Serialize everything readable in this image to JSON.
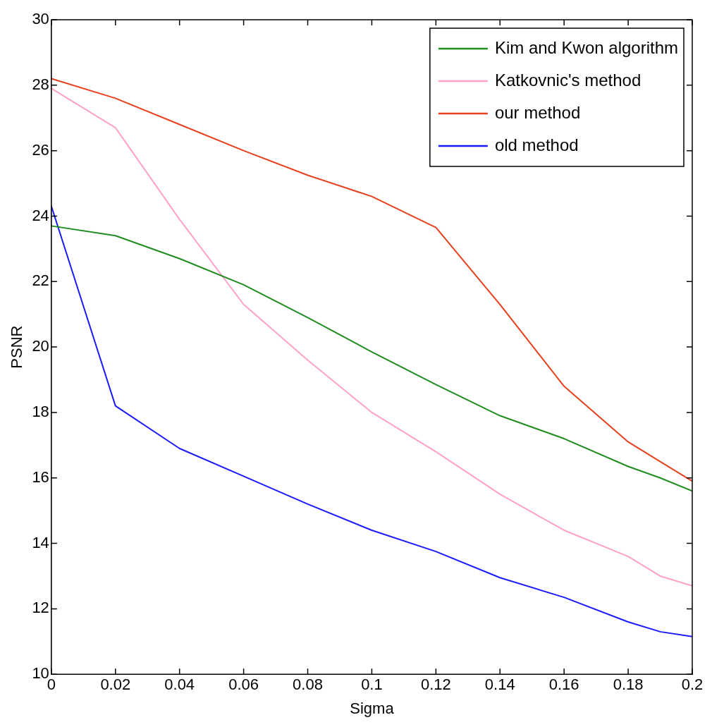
{
  "chart_data": {
    "type": "line",
    "xlabel": "Sigma",
    "ylabel": "PSNR",
    "x": [
      0,
      0.02,
      0.04,
      0.06,
      0.08,
      0.1,
      0.12,
      0.14,
      0.16,
      0.18,
      0.19,
      0.2
    ],
    "series": [
      {
        "name": "Kim and Kwon algorithm",
        "color": "#1f8c1f",
        "values": [
          23.7,
          23.4,
          22.7,
          21.9,
          20.9,
          19.85,
          18.85,
          17.9,
          17.2,
          16.35,
          16.0,
          15.6
        ]
      },
      {
        "name": "Katkovnic's method",
        "color": "#ffa0c8",
        "values": [
          27.9,
          26.7,
          23.9,
          21.3,
          19.6,
          18.0,
          16.8,
          15.5,
          14.4,
          13.6,
          13.0,
          12.7
        ]
      },
      {
        "name": "our method",
        "color": "#e8401c",
        "values": [
          28.2,
          27.6,
          26.8,
          26.0,
          25.25,
          24.6,
          23.65,
          21.3,
          18.8,
          17.1,
          16.5,
          15.9
        ]
      },
      {
        "name": "old method",
        "color": "#1a1aff",
        "values": [
          24.3,
          18.2,
          16.9,
          16.05,
          15.2,
          14.4,
          13.75,
          12.95,
          12.35,
          11.6,
          11.3,
          11.15
        ]
      }
    ],
    "xlim": [
      0,
      0.2
    ],
    "xticks": [
      0,
      0.02,
      0.04,
      0.06,
      0.08,
      0.1,
      0.12,
      0.14,
      0.16,
      0.18,
      0.2
    ],
    "ylim": [
      10,
      30
    ],
    "yticks": [
      10,
      12,
      14,
      16,
      18,
      20,
      22,
      24,
      26,
      28,
      30
    ],
    "legend": "top right",
    "marker": "none",
    "line_style": "solid",
    "grid": false
  }
}
